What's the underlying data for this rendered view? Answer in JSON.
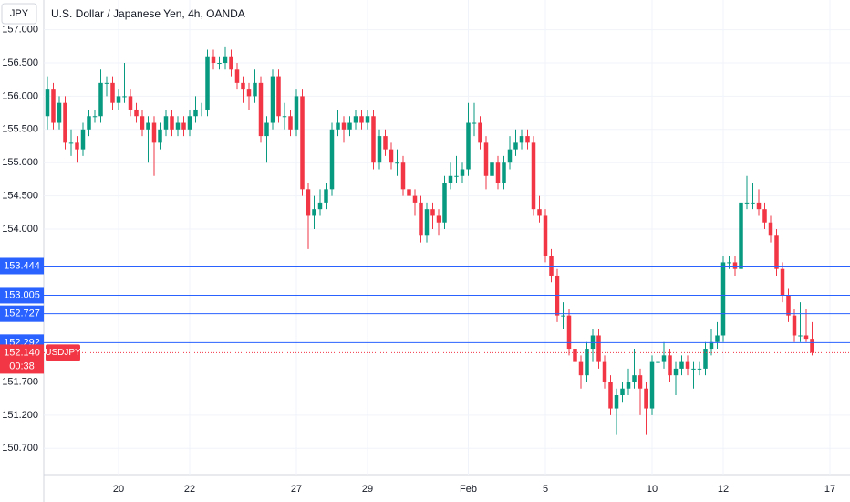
{
  "chart_data": {
    "type": "candlestick",
    "title": "U.S. Dollar / Japanese Yen, 4h, OANDA",
    "currency": "JPY",
    "symbol": "USDJPY",
    "countdown": "00:38",
    "up_color": "#089981",
    "down_color": "#f23645",
    "level_color": "#2962ff",
    "ylim": [
      150.305,
      157.448
    ],
    "yticks": [
      {
        "value": 157,
        "label": "157.000"
      },
      {
        "value": 156.5,
        "label": "156.500"
      },
      {
        "value": 156,
        "label": "156.000"
      },
      {
        "value": 155.5,
        "label": "155.500"
      },
      {
        "value": 155,
        "label": "155.000"
      },
      {
        "value": 154.5,
        "label": "154.500"
      },
      {
        "value": 154,
        "label": "154.000"
      },
      {
        "value": 151.7,
        "label": "151.700"
      },
      {
        "value": 151.2,
        "label": "151.200"
      },
      {
        "value": 150.7,
        "label": "150.700"
      }
    ],
    "levels": [
      153.444,
      153.005,
      152.727,
      152.292
    ],
    "current_price": {
      "value": 152.14,
      "label": "152.140"
    },
    "categories": [
      null,
      null,
      null,
      null,
      null,
      null,
      null,
      null,
      null,
      null,
      null,
      null,
      "20",
      null,
      null,
      null,
      null,
      null,
      null,
      null,
      null,
      null,
      null,
      null,
      "22",
      null,
      null,
      null,
      null,
      null,
      null,
      null,
      null,
      null,
      null,
      null,
      null,
      null,
      null,
      null,
      null,
      null,
      "27",
      null,
      null,
      null,
      null,
      null,
      null,
      null,
      null,
      null,
      null,
      null,
      "29",
      null,
      null,
      null,
      null,
      null,
      null,
      null,
      null,
      null,
      null,
      null,
      null,
      null,
      null,
      null,
      null,
      "Feb",
      null,
      null,
      null,
      null,
      null,
      null,
      null,
      null,
      null,
      null,
      null,
      null,
      "5",
      null,
      null,
      null,
      null,
      null,
      null,
      null,
      null,
      null,
      null,
      null,
      null,
      null,
      null,
      null,
      null,
      null,
      "10",
      null,
      null,
      null,
      null,
      null,
      null,
      null,
      null,
      null,
      null,
      null,
      "12",
      null,
      null,
      null,
      null,
      null,
      null,
      null,
      null,
      null,
      null,
      null,
      null,
      null,
      null,
      null,
      null,
      null,
      "17"
    ],
    "candles": [
      [
        155.7,
        156.3,
        155.5,
        156.1
      ],
      [
        156.1,
        156.2,
        155.5,
        155.6
      ],
      [
        155.6,
        156.0,
        155.5,
        155.9
      ],
      [
        155.9,
        156.0,
        155.2,
        155.3
      ],
      [
        155.3,
        155.5,
        155.1,
        155.3
      ],
      [
        155.3,
        155.4,
        155.0,
        155.2
      ],
      [
        155.2,
        155.6,
        155.1,
        155.5
      ],
      [
        155.5,
        155.8,
        155.4,
        155.7
      ],
      [
        155.7,
        155.8,
        155.6,
        155.7
      ],
      [
        155.7,
        156.4,
        155.6,
        156.2
      ],
      [
        156.2,
        156.3,
        156.0,
        156.2
      ],
      [
        156.2,
        156.3,
        155.8,
        155.9
      ],
      [
        155.9,
        156.1,
        155.8,
        156.0
      ],
      [
        156.0,
        156.5,
        155.9,
        156.0
      ],
      [
        156.0,
        156.1,
        155.7,
        155.8
      ],
      [
        155.8,
        155.9,
        155.6,
        155.7
      ],
      [
        155.7,
        155.8,
        155.4,
        155.5
      ],
      [
        155.5,
        155.7,
        155.0,
        155.6
      ],
      [
        155.6,
        155.7,
        154.8,
        155.3
      ],
      [
        155.3,
        155.6,
        155.2,
        155.5
      ],
      [
        155.5,
        155.8,
        155.4,
        155.7
      ],
      [
        155.7,
        155.8,
        155.4,
        155.5
      ],
      [
        155.5,
        155.7,
        155.4,
        155.6
      ],
      [
        155.6,
        155.7,
        155.4,
        155.5
      ],
      [
        155.5,
        155.8,
        155.4,
        155.7
      ],
      [
        155.7,
        156.0,
        155.6,
        155.8
      ],
      [
        155.8,
        155.9,
        155.7,
        155.8
      ],
      [
        155.8,
        156.7,
        155.7,
        156.6
      ],
      [
        156.6,
        156.7,
        156.4,
        156.5
      ],
      [
        156.5,
        156.6,
        156.4,
        156.5
      ],
      [
        156.5,
        156.75,
        156.4,
        156.6
      ],
      [
        156.6,
        156.7,
        156.3,
        156.4
      ],
      [
        156.4,
        156.5,
        156.1,
        156.2
      ],
      [
        156.2,
        156.3,
        155.9,
        156.1
      ],
      [
        156.1,
        156.2,
        155.8,
        156.0
      ],
      [
        156.0,
        156.4,
        155.9,
        156.2
      ],
      [
        156.2,
        156.3,
        155.3,
        155.4
      ],
      [
        155.4,
        155.7,
        155.0,
        155.6
      ],
      [
        155.6,
        156.4,
        155.5,
        156.3
      ],
      [
        156.3,
        156.4,
        155.6,
        155.7
      ],
      [
        155.7,
        155.9,
        155.5,
        155.7
      ],
      [
        155.7,
        155.8,
        155.4,
        155.5
      ],
      [
        155.5,
        156.1,
        155.4,
        156.0
      ],
      [
        156.0,
        156.1,
        154.5,
        154.6
      ],
      [
        154.6,
        154.7,
        153.7,
        154.2
      ],
      [
        154.2,
        154.5,
        154.0,
        154.3
      ],
      [
        154.3,
        154.6,
        154.2,
        154.4
      ],
      [
        154.4,
        154.7,
        154.3,
        154.6
      ],
      [
        154.6,
        155.6,
        154.5,
        155.5
      ],
      [
        155.5,
        155.8,
        155.4,
        155.6
      ],
      [
        155.6,
        155.7,
        155.3,
        155.5
      ],
      [
        155.5,
        155.7,
        155.4,
        155.6
      ],
      [
        155.6,
        155.8,
        155.5,
        155.7
      ],
      [
        155.7,
        155.8,
        155.5,
        155.6
      ],
      [
        155.6,
        155.8,
        155.5,
        155.7
      ],
      [
        155.7,
        155.8,
        154.9,
        155.0
      ],
      [
        155.0,
        155.5,
        154.9,
        155.4
      ],
      [
        155.4,
        155.5,
        155.1,
        155.2
      ],
      [
        155.2,
        155.3,
        154.9,
        155.0
      ],
      [
        155.0,
        155.2,
        154.8,
        155.0
      ],
      [
        155.0,
        155.1,
        154.5,
        154.6
      ],
      [
        154.6,
        154.7,
        154.4,
        154.5
      ],
      [
        154.5,
        154.6,
        154.2,
        154.4
      ],
      [
        154.4,
        154.5,
        153.8,
        153.9
      ],
      [
        153.9,
        154.4,
        153.8,
        154.3
      ],
      [
        154.3,
        154.4,
        154.0,
        154.2
      ],
      [
        154.2,
        154.3,
        153.9,
        154.1
      ],
      [
        154.1,
        154.8,
        154.0,
        154.7
      ],
      [
        154.7,
        155.0,
        154.6,
        154.8
      ],
      [
        154.8,
        155.1,
        154.7,
        154.8
      ],
      [
        154.8,
        155.0,
        154.7,
        154.9
      ],
      [
        154.9,
        155.9,
        154.8,
        155.6
      ],
      [
        155.6,
        155.9,
        155.4,
        155.6
      ],
      [
        155.6,
        155.7,
        155.2,
        155.3
      ],
      [
        155.3,
        155.4,
        154.6,
        154.8
      ],
      [
        154.8,
        155.1,
        154.3,
        155.0
      ],
      [
        155.0,
        155.1,
        154.6,
        154.7
      ],
      [
        154.7,
        155.1,
        154.6,
        155.0
      ],
      [
        155.0,
        155.4,
        154.9,
        155.2
      ],
      [
        155.2,
        155.5,
        155.1,
        155.3
      ],
      [
        155.3,
        155.5,
        155.2,
        155.4
      ],
      [
        155.4,
        155.5,
        155.2,
        155.3
      ],
      [
        155.3,
        155.4,
        154.2,
        154.3
      ],
      [
        154.3,
        154.5,
        154.1,
        154.2
      ],
      [
        154.2,
        154.3,
        153.5,
        153.6
      ],
      [
        153.6,
        153.7,
        153.2,
        153.3
      ],
      [
        153.3,
        153.4,
        152.6,
        152.7
      ],
      [
        152.7,
        152.9,
        152.5,
        152.7
      ],
      [
        152.7,
        152.8,
        152.1,
        152.2
      ],
      [
        152.2,
        152.4,
        151.8,
        152.0
      ],
      [
        152.0,
        152.1,
        151.6,
        151.8
      ],
      [
        151.8,
        152.3,
        151.7,
        152.2
      ],
      [
        152.2,
        152.5,
        152.0,
        152.4
      ],
      [
        152.4,
        152.5,
        151.9,
        152.0
      ],
      [
        152.0,
        152.1,
        151.6,
        151.7
      ],
      [
        151.7,
        151.8,
        151.2,
        151.3
      ],
      [
        151.3,
        151.6,
        150.9,
        151.5
      ],
      [
        151.5,
        151.7,
        151.4,
        151.6
      ],
      [
        151.6,
        151.9,
        151.5,
        151.7
      ],
      [
        151.7,
        152.2,
        151.6,
        151.8
      ],
      [
        151.8,
        151.9,
        151.2,
        151.6
      ],
      [
        151.6,
        151.7,
        150.9,
        151.3
      ],
      [
        151.3,
        152.1,
        151.2,
        152.0
      ],
      [
        152.0,
        152.2,
        151.9,
        152.0
      ],
      [
        152.0,
        152.3,
        151.9,
        152.1
      ],
      [
        152.1,
        152.2,
        151.7,
        151.8
      ],
      [
        151.8,
        152.0,
        151.5,
        151.9
      ],
      [
        151.9,
        152.1,
        151.8,
        152.0
      ],
      [
        152.0,
        152.1,
        151.8,
        151.9
      ],
      [
        151.9,
        152.0,
        151.6,
        151.9
      ],
      [
        151.9,
        152.0,
        151.8,
        151.9
      ],
      [
        151.9,
        152.3,
        151.8,
        152.2
      ],
      [
        152.2,
        152.5,
        152.1,
        152.3
      ],
      [
        152.3,
        152.6,
        152.2,
        152.4
      ],
      [
        152.4,
        153.6,
        152.3,
        153.5
      ],
      [
        153.5,
        153.6,
        153.4,
        153.5
      ],
      [
        153.5,
        153.6,
        153.3,
        153.4
      ],
      [
        153.4,
        154.5,
        153.3,
        154.4
      ],
      [
        154.4,
        154.8,
        154.3,
        154.4
      ],
      [
        154.4,
        154.7,
        154.3,
        154.4
      ],
      [
        154.4,
        154.6,
        154.2,
        154.3
      ],
      [
        154.3,
        154.4,
        154.0,
        154.1
      ],
      [
        154.1,
        154.2,
        153.8,
        153.9
      ],
      [
        153.9,
        154.0,
        153.3,
        153.4
      ],
      [
        153.4,
        153.5,
        152.9,
        153.0
      ],
      [
        153.0,
        153.1,
        152.6,
        152.7
      ],
      [
        152.7,
        152.8,
        152.3,
        152.4
      ],
      [
        152.4,
        152.9,
        152.3,
        152.4
      ],
      [
        152.4,
        152.8,
        152.3,
        152.35
      ],
      [
        152.35,
        152.6,
        152.1,
        152.14
      ],
      null,
      null,
      null,
      null
    ]
  }
}
